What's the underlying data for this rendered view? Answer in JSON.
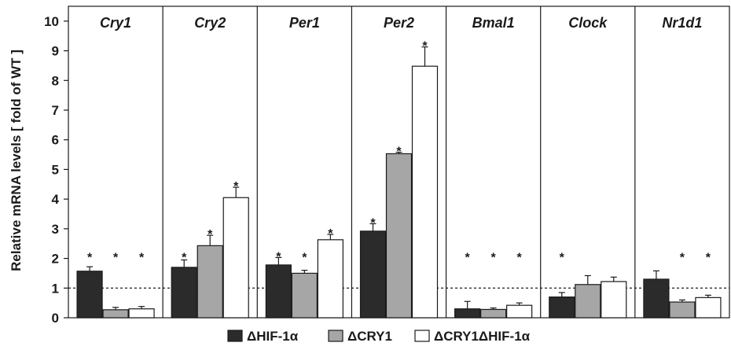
{
  "chart_data": {
    "type": "bar",
    "ylabel": "Relative mRNA levels [ fold of WT ]",
    "ylim": [
      0,
      10.5
    ],
    "yticks": [
      "0",
      "1",
      "2",
      "3",
      "4",
      "5",
      "6",
      "7",
      "8",
      "9",
      "10"
    ],
    "reference_line": 1,
    "categories": [
      "Cry1",
      "Cry2",
      "Per1",
      "Per2",
      "Bmal1",
      "Clock",
      "Nr1d1"
    ],
    "series": [
      {
        "name": "ΔHIF-1α",
        "color": "#2b2b2b",
        "values": [
          1.57,
          1.7,
          1.78,
          2.92,
          0.3,
          0.7,
          1.3
        ],
        "errors": [
          0.15,
          0.25,
          0.25,
          0.25,
          0.25,
          0.15,
          0.28
        ],
        "significant": [
          true,
          true,
          true,
          true,
          true,
          true,
          false
        ]
      },
      {
        "name": "ΔCRY1",
        "color": "#a6a6a6",
        "values": [
          0.27,
          2.43,
          1.5,
          5.53,
          0.28,
          1.12,
          0.53
        ],
        "errors": [
          0.08,
          0.35,
          0.1,
          0.05,
          0.05,
          0.3,
          0.07
        ],
        "significant": [
          true,
          true,
          true,
          true,
          true,
          false,
          true
        ]
      },
      {
        "name": "ΔCRY1ΔHIF-1α",
        "color": "#ffffff",
        "values": [
          0.3,
          4.05,
          2.63,
          8.48,
          0.42,
          1.22,
          0.68
        ],
        "errors": [
          0.08,
          0.35,
          0.18,
          0.65,
          0.08,
          0.15,
          0.08
        ],
        "significant": [
          true,
          true,
          true,
          true,
          true,
          false,
          true
        ]
      }
    ],
    "significance_marker": "*",
    "legend_position": "bottom"
  }
}
